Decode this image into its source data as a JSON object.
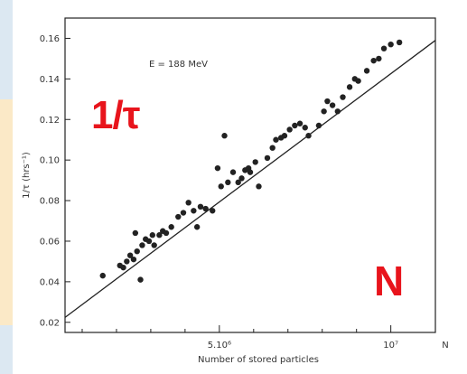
{
  "colors": {
    "overlay": "#e8141c",
    "ink": "#222222",
    "side_band_top": "#dce8f2",
    "side_band_bottom": "#fbe9c7"
  },
  "annotation": "E = 188 MeV",
  "overlay_labels": {
    "y_symbol": "1/τ",
    "x_symbol": "N"
  },
  "chart_data": {
    "type": "scatter",
    "title": "",
    "xlabel": "Number of stored particles",
    "ylabel": "1/τ (hrs⁻¹)",
    "x_unit_label": "N",
    "xlim": [
      500000.0,
      11300000.0
    ],
    "ylim": [
      0.015,
      0.17
    ],
    "x_ticks": [
      {
        "value": 5000000,
        "label": "5.10⁶"
      },
      {
        "value": 10000000,
        "label": "10⁷"
      }
    ],
    "x_minor_ticks": [
      1000000,
      2000000,
      3000000,
      4000000,
      6000000,
      7000000,
      8000000,
      9000000
    ],
    "y_ticks": [
      {
        "value": 0.02,
        "label": "0.02"
      },
      {
        "value": 0.04,
        "label": "0.04"
      },
      {
        "value": 0.06,
        "label": "0.06"
      },
      {
        "value": 0.08,
        "label": "0.08"
      },
      {
        "value": 0.1,
        "label": "0.10"
      },
      {
        "value": 0.12,
        "label": "0.12"
      },
      {
        "value": 0.14,
        "label": "0.14"
      },
      {
        "value": 0.16,
        "label": "0.16"
      }
    ],
    "grid": false,
    "fit_line": {
      "x": [
        500000.0,
        11300000.0
      ],
      "y": [
        0.0224,
        0.159
      ]
    },
    "series": [
      {
        "points": [
          [
            1600000.0,
            0.043
          ],
          [
            2100000.0,
            0.048
          ],
          [
            2200000.0,
            0.047
          ],
          [
            2300000.0,
            0.05
          ],
          [
            2400000.0,
            0.053
          ],
          [
            2500000.0,
            0.051
          ],
          [
            2550000.0,
            0.064
          ],
          [
            2600000.0,
            0.055
          ],
          [
            2700000.0,
            0.041
          ],
          [
            2750000.0,
            0.058
          ],
          [
            2850000.0,
            0.061
          ],
          [
            2950000.0,
            0.06
          ],
          [
            3050000.0,
            0.063
          ],
          [
            3100000.0,
            0.058
          ],
          [
            3250000.0,
            0.063
          ],
          [
            3350000.0,
            0.065
          ],
          [
            3450000.0,
            0.064
          ],
          [
            3600000.0,
            0.067
          ],
          [
            3800000.0,
            0.072
          ],
          [
            3950000.0,
            0.074
          ],
          [
            4100000.0,
            0.079
          ],
          [
            4250000.0,
            0.075
          ],
          [
            4350000.0,
            0.067
          ],
          [
            4450000.0,
            0.077
          ],
          [
            4600000.0,
            0.076
          ],
          [
            4800000.0,
            0.075
          ],
          [
            4950000.0,
            0.096
          ],
          [
            5050000.0,
            0.087
          ],
          [
            5150000.0,
            0.112
          ],
          [
            5250000.0,
            0.089
          ],
          [
            5400000.0,
            0.094
          ],
          [
            5550000.0,
            0.089
          ],
          [
            5650000.0,
            0.091
          ],
          [
            5750000.0,
            0.095
          ],
          [
            5850000.0,
            0.096
          ],
          [
            5900000.0,
            0.094
          ],
          [
            6050000.0,
            0.099
          ],
          [
            6150000.0,
            0.087
          ],
          [
            6400000.0,
            0.101
          ],
          [
            6550000.0,
            0.106
          ],
          [
            6650000.0,
            0.11
          ],
          [
            6800000.0,
            0.111
          ],
          [
            6900000.0,
            0.112
          ],
          [
            7050000.0,
            0.115
          ],
          [
            7200000.0,
            0.117
          ],
          [
            7350000.0,
            0.118
          ],
          [
            7500000.0,
            0.116
          ],
          [
            7600000.0,
            0.112
          ],
          [
            7900000.0,
            0.117
          ],
          [
            8050000.0,
            0.124
          ],
          [
            8150000.0,
            0.129
          ],
          [
            8300000.0,
            0.127
          ],
          [
            8450000.0,
            0.124
          ],
          [
            8600000.0,
            0.131
          ],
          [
            8800000.0,
            0.136
          ],
          [
            8950000.0,
            0.14
          ],
          [
            9050000.0,
            0.139
          ],
          [
            9300000.0,
            0.144
          ],
          [
            9500000.0,
            0.149
          ],
          [
            9650000.0,
            0.15
          ],
          [
            9800000.0,
            0.155
          ],
          [
            10000000.0,
            0.157
          ],
          [
            10250000.0,
            0.158
          ]
        ]
      }
    ]
  }
}
